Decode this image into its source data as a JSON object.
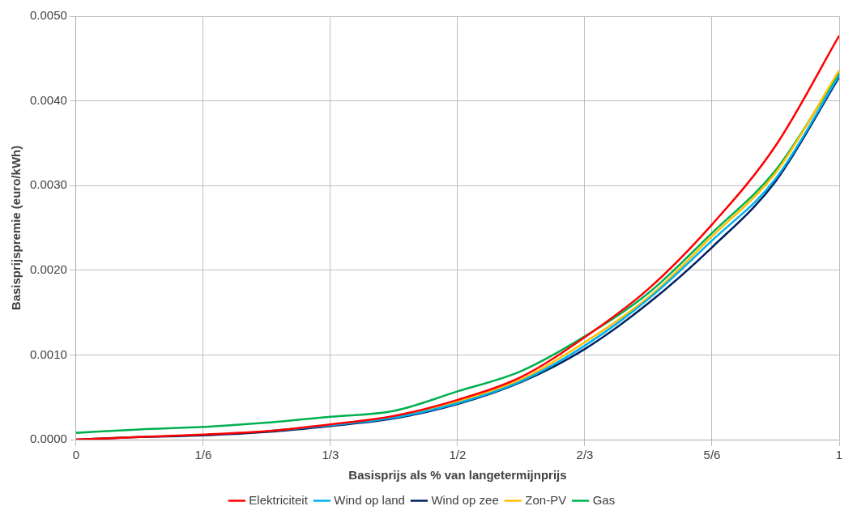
{
  "chart_data": {
    "type": "line",
    "xlabel": "Basisprijs als % van langetermijnprijs",
    "ylabel": "Basisprijspremie (euro/kWh)",
    "x": [
      0,
      0.0833,
      0.1667,
      0.25,
      0.3333,
      0.4167,
      0.5,
      0.5833,
      0.6667,
      0.75,
      0.8333,
      0.9167,
      1
    ],
    "series": [
      {
        "name": "Elektriciteit",
        "color": "#ff0000",
        "values": [
          0,
          3e-05,
          6e-05,
          0.0001,
          0.00018,
          0.00028,
          0.00047,
          0.00074,
          0.00121,
          0.00178,
          0.00254,
          0.00347,
          0.00477
        ]
      },
      {
        "name": "Wind op land",
        "color": "#00b0f0",
        "values": [
          null,
          null,
          null,
          0.0001,
          0.00017,
          0.00026,
          0.00043,
          0.00069,
          0.00111,
          0.00166,
          0.00235,
          0.00308,
          0.0043
        ]
      },
      {
        "name": "Wind op zee",
        "color": "#002060",
        "values": [
          0,
          3e-05,
          5e-05,
          9e-05,
          0.00016,
          0.00025,
          0.00042,
          0.00068,
          0.00107,
          0.00161,
          0.00227,
          0.00305,
          0.00428
        ]
      },
      {
        "name": "Zon-PV",
        "color": "#ffc000",
        "values": [
          null,
          null,
          null,
          null,
          null,
          0.00027,
          0.00045,
          0.00071,
          0.00115,
          0.00168,
          0.0024,
          0.00315,
          0.00436
        ]
      },
      {
        "name": "Gas",
        "color": "#00b050",
        "values": [
          8e-05,
          0.00012,
          0.00015,
          0.0002,
          0.00027,
          0.00034,
          0.00057,
          0.00081,
          0.00122,
          0.00173,
          0.00244,
          0.00318,
          0.00433
        ]
      }
    ],
    "xlim": [
      0,
      1
    ],
    "xticks": [
      0,
      {
        "value": 0.16667,
        "label": "1/6"
      },
      {
        "value": 0.33333,
        "label": "1/3"
      },
      {
        "value": 0.5,
        "label": "1/2"
      },
      {
        "value": 0.66667,
        "label": "2/3"
      },
      {
        "value": 0.83333,
        "label": "5/6"
      },
      1
    ],
    "ylim": [
      0,
      0.005
    ],
    "yticks": [
      {
        "value": 0,
        "label": "0.0000"
      },
      {
        "value": 0.001,
        "label": "0.0010"
      },
      {
        "value": 0.002,
        "label": "0.0020"
      },
      {
        "value": 0.003,
        "label": "0.0030"
      },
      {
        "value": 0.004,
        "label": "0.0040"
      },
      {
        "value": 0.005,
        "label": "0.0050"
      }
    ],
    "grid": true,
    "legend": "bottom",
    "marker": "none",
    "line_style": "solid"
  }
}
